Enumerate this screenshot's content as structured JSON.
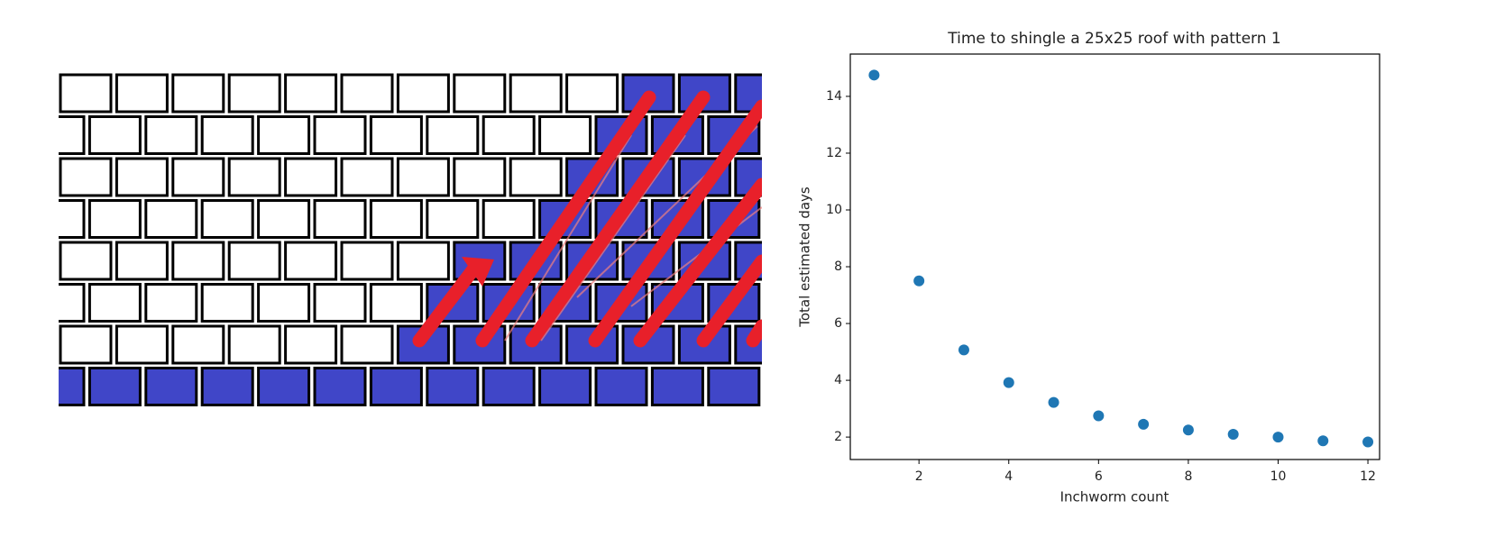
{
  "chart_data": {
    "type": "scatter",
    "title": "Time to shingle a 25x25 roof with pattern 1",
    "xlabel": "Inchworm count",
    "ylabel": "Total estimated days",
    "x": [
      1,
      2,
      3,
      4,
      5,
      6,
      7,
      8,
      9,
      10,
      11,
      12
    ],
    "values": [
      14.75,
      7.5,
      5.07,
      3.92,
      3.22,
      2.75,
      2.45,
      2.25,
      2.1,
      2.0,
      1.87,
      1.83
    ],
    "color": "#1f77b4",
    "xlim": [
      0.47,
      12.26
    ],
    "ylim": [
      1.21,
      15.49
    ],
    "xticks": [
      2,
      4,
      6,
      8,
      10,
      12
    ],
    "yticks": [
      2,
      4,
      6,
      8,
      10,
      12,
      14
    ]
  }
}
